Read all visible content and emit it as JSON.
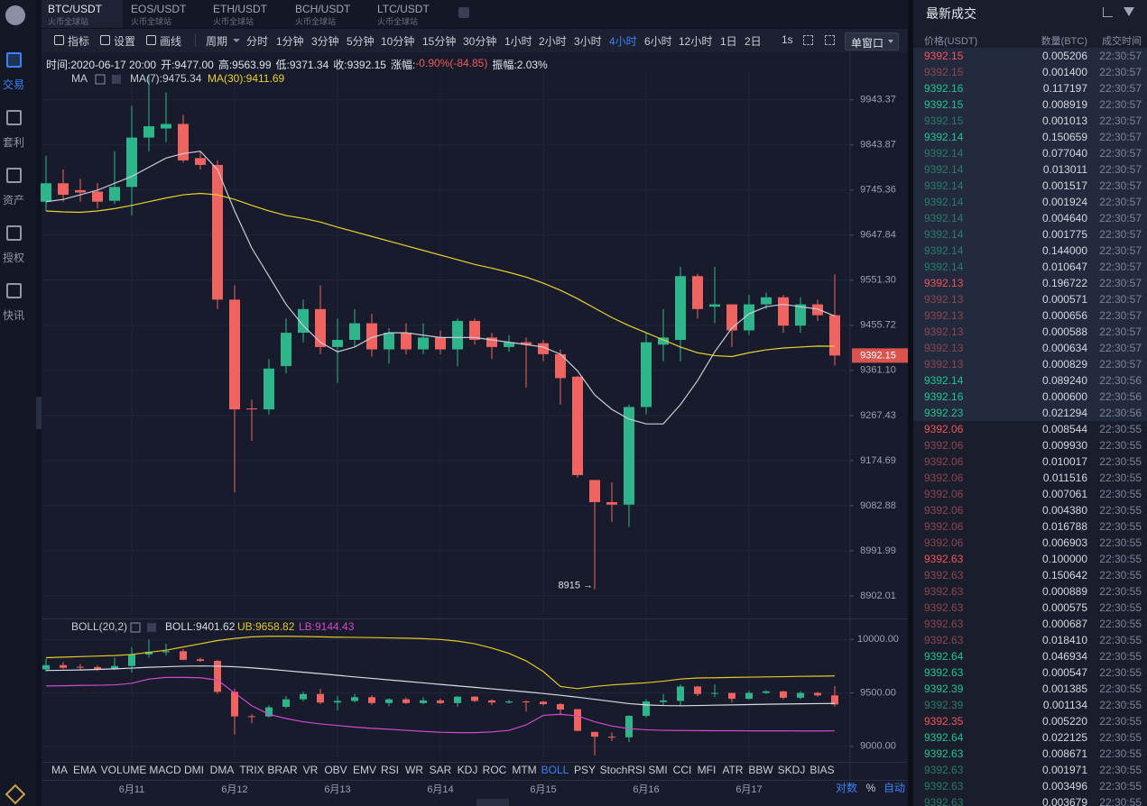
{
  "sidebar": {
    "nav": [
      {
        "label": "交易",
        "active": true
      },
      {
        "label": "套利"
      },
      {
        "label": "资产"
      },
      {
        "label": "授权"
      },
      {
        "label": "快讯"
      }
    ]
  },
  "tabs": [
    {
      "symbol": "BTC/USDT",
      "venue": "火币全球站",
      "active": true
    },
    {
      "symbol": "EOS/USDT",
      "venue": "火币全球站"
    },
    {
      "symbol": "ETH/USDT",
      "venue": "火币全球站"
    },
    {
      "symbol": "BCH/USDT",
      "venue": "火币全球站"
    },
    {
      "symbol": "LTC/USDT",
      "venue": "火币全球站"
    }
  ],
  "toolbar": {
    "tools": [
      "指标",
      "设置",
      "画线"
    ],
    "period_label": "周期",
    "periods": [
      {
        "label": "分时"
      },
      {
        "label": "1分钟"
      },
      {
        "label": "3分钟"
      },
      {
        "label": "5分钟"
      },
      {
        "label": "10分钟"
      },
      {
        "label": "15分钟"
      },
      {
        "label": "30分钟"
      },
      {
        "label": "1小时"
      },
      {
        "label": "2小时"
      },
      {
        "label": "3小时"
      },
      {
        "label": "4小时",
        "active": true
      },
      {
        "label": "6小时"
      },
      {
        "label": "12小时"
      },
      {
        "label": "1日"
      },
      {
        "label": "2日"
      }
    ],
    "interval": "1s",
    "window": "单窗口"
  },
  "info": {
    "items": [
      "时间:2020-06-17 20:00",
      "开:9477.00",
      "高:9563.99",
      "低:9371.34",
      "收:9392.15"
    ],
    "change_label": "涨幅:",
    "change": "-0.90%(-84.85)",
    "change_color": "#ef5b5b",
    "amplitude": "振幅:2.03%"
  },
  "chart_data": [
    {
      "type": "candlestick",
      "legend_title": "MA",
      "log": true,
      "grid": true,
      "up_color": "#2fb58c",
      "down_color": "#ef6461",
      "categories": [
        null,
        null,
        null,
        null,
        null,
        "6月11",
        null,
        null,
        null,
        null,
        null,
        "6月12",
        null,
        null,
        null,
        null,
        null,
        "6月13",
        null,
        null,
        null,
        null,
        null,
        "6月14",
        null,
        null,
        null,
        null,
        null,
        "6月15",
        null,
        null,
        null,
        null,
        null,
        "6月16",
        null,
        null,
        null,
        null,
        null,
        "6月17",
        null,
        null,
        null,
        null,
        null
      ],
      "open": [
        9720,
        9760,
        9745,
        9742,
        9722,
        9752,
        9860,
        9880,
        9890,
        9815,
        9800,
        9510,
        9282,
        9280,
        9370,
        9440,
        9490,
        9410,
        9425,
        9460,
        9405,
        9440,
        9405,
        9430,
        9405,
        9465,
        9430,
        9410,
        9420,
        9418,
        9395,
        9348,
        9135,
        9090,
        9085,
        9285,
        9415,
        9425,
        9560,
        9495,
        9500,
        9445,
        9500,
        9515,
        9455,
        9500,
        9477
      ],
      "high": [
        9820,
        9790,
        9770,
        9760,
        9830,
        9930,
        10000,
        9960,
        9910,
        9830,
        9810,
        9540,
        9300,
        9385,
        9470,
        9510,
        9540,
        9470,
        9490,
        9480,
        9450,
        9460,
        9460,
        9445,
        9470,
        9470,
        9440,
        9435,
        9430,
        9425,
        9405,
        9350,
        9135,
        9130,
        9290,
        9440,
        9490,
        9580,
        9565,
        9580,
        9500,
        9520,
        9525,
        9520,
        9515,
        9510,
        9563.99
      ],
      "low": [
        9700,
        9720,
        9720,
        9705,
        9715,
        9690,
        9830,
        9850,
        9805,
        9790,
        9490,
        9110,
        9215,
        9270,
        9355,
        9420,
        9395,
        9335,
        9410,
        9390,
        9375,
        9395,
        9395,
        9395,
        9370,
        9415,
        9385,
        9400,
        9325,
        9380,
        9290,
        9140,
        8915,
        9050,
        9040,
        9270,
        9380,
        9380,
        9470,
        9460,
        9410,
        9435,
        9490,
        9440,
        9440,
        9465,
        9371.34
      ],
      "close": [
        9760,
        9735,
        9740,
        9720,
        9752,
        9860,
        9885,
        9890,
        9810,
        9800,
        9510,
        9280,
        9280,
        9365,
        9440,
        9490,
        9410,
        9425,
        9460,
        9405,
        9440,
        9405,
        9430,
        9405,
        9465,
        9425,
        9410,
        9420,
        9415,
        9395,
        9345,
        9145,
        9090,
        9085,
        9285,
        9420,
        9430,
        9560,
        9490,
        9500,
        9445,
        9500,
        9515,
        9455,
        9500,
        9477,
        9392.15
      ],
      "series": [
        {
          "name": "MA(7):9475.34",
          "color": "#c9ccd6",
          "values": [
            9720,
            9725,
            9735,
            9745,
            9760,
            9775,
            9795,
            9815,
            9825,
            9830,
            9790,
            9700,
            9620,
            9560,
            9500,
            9455,
            9420,
            9400,
            9410,
            9430,
            9440,
            9440,
            9435,
            9430,
            9430,
            9430,
            9425,
            9420,
            9415,
            9410,
            9395,
            9360,
            9310,
            9280,
            9260,
            9250,
            9250,
            9290,
            9340,
            9400,
            9450,
            9480,
            9495,
            9500,
            9495,
            9490,
            9475.34
          ]
        },
        {
          "name": "MA(30):9411.69",
          "color": "#e8d330",
          "values": [
            9700,
            9698,
            9697,
            9700,
            9705,
            9712,
            9720,
            9728,
            9735,
            9738,
            9735,
            9725,
            9712,
            9700,
            9690,
            9684,
            9676,
            9665,
            9655,
            9645,
            9635,
            9625,
            9615,
            9605,
            9595,
            9585,
            9577,
            9568,
            9558,
            9545,
            9530,
            9512,
            9492,
            9472,
            9455,
            9440,
            9425,
            9410,
            9398,
            9392,
            9390,
            9398,
            9404,
            9408,
            9410,
            9412,
            9411.69
          ]
        }
      ],
      "ylim": [
        8859,
        10005
      ],
      "yticks": [
        9943.37,
        9843.87,
        9745.36,
        9647.84,
        {
          "value": 9551.3,
          "label": "9551.30"
        },
        9455.72,
        {
          "value": 9361.1,
          "label": "9361.10"
        },
        9267.43,
        9174.69,
        9082.88,
        8991.99,
        8902.01
      ],
      "annotation": "8915 →"
    },
    {
      "type": "boll",
      "title": "BOLL(20,2)",
      "grid": true,
      "series": [
        {
          "name": "BOLL:9401.62",
          "color": "#d8dbe6",
          "values": [
            9710,
            9712,
            9715,
            9720,
            9725,
            9732,
            9740,
            9745,
            9750,
            9752,
            9750,
            9745,
            9735,
            9722,
            9708,
            9694,
            9680,
            9665,
            9650,
            9636,
            9622,
            9608,
            9594,
            9580,
            9566,
            9552,
            9538,
            9524,
            9510,
            9495,
            9478,
            9460,
            9440,
            9420,
            9400,
            9388,
            9382,
            9380,
            9382,
            9385,
            9388,
            9391,
            9394,
            9396,
            9398,
            9400,
            9401.62
          ]
        },
        {
          "name": "UB:9658.82",
          "color": "#e6c829",
          "values": [
            9830,
            9835,
            9840,
            9845,
            9850,
            9860,
            9880,
            9900,
            9930,
            9960,
            9990,
            10010,
            10025,
            10030,
            10030,
            10028,
            10025,
            10022,
            10020,
            10018,
            10015,
            10012,
            10008,
            10000,
            9985,
            9960,
            9920,
            9870,
            9800,
            9700,
            9560,
            9540,
            9560,
            9575,
            9585,
            9595,
            9610,
            9630,
            9640,
            9642,
            9645,
            9648,
            9650,
            9652,
            9655,
            9657,
            9658.82
          ]
        },
        {
          "name": "LB:9144.43",
          "color": "#d14ad0",
          "values": [
            9565,
            9567,
            9570,
            9572,
            9575,
            9590,
            9630,
            9645,
            9645,
            9642,
            9620,
            9500,
            9380,
            9300,
            9260,
            9230,
            9210,
            9195,
            9180,
            9168,
            9160,
            9150,
            9140,
            9132,
            9128,
            9128,
            9135,
            9150,
            9200,
            9290,
            9300,
            9285,
            9230,
            9190,
            9165,
            9155,
            9150,
            9148,
            9147,
            9146,
            9146,
            9145,
            9145,
            9145,
            9144,
            9144,
            9144.43
          ]
        }
      ],
      "ylim": [
        8855,
        10180
      ],
      "yticks": [
        {
          "value": 10000,
          "label": "10000.00"
        },
        {
          "value": 9500,
          "label": "9500.00"
        },
        {
          "value": 9000,
          "label": "9000.00"
        }
      ]
    }
  ],
  "indicators": [
    {
      "label": "MA"
    },
    {
      "label": "EMA"
    },
    {
      "label": "VOLUME"
    },
    {
      "label": "MACD"
    },
    {
      "label": "DMI"
    },
    {
      "label": "DMA"
    },
    {
      "label": "TRIX"
    },
    {
      "label": "BRAR"
    },
    {
      "label": "VR"
    },
    {
      "label": "OBV"
    },
    {
      "label": "EMV"
    },
    {
      "label": "RSI"
    },
    {
      "label": "WR"
    },
    {
      "label": "SAR"
    },
    {
      "label": "KDJ"
    },
    {
      "label": "ROC"
    },
    {
      "label": "MTM"
    },
    {
      "label": "BOLL",
      "active": true
    },
    {
      "label": "PSY"
    },
    {
      "label": "StochRSI"
    },
    {
      "label": "SMI"
    },
    {
      "label": "CCI"
    },
    {
      "label": "MFI"
    },
    {
      "label": "ATR"
    },
    {
      "label": "BBW"
    },
    {
      "label": "SKDJ"
    },
    {
      "label": "BIAS"
    }
  ],
  "axis_options": [
    {
      "label": "对数",
      "active": true
    },
    {
      "label": "%"
    },
    {
      "label": "自动",
      "active": true
    }
  ],
  "trades": {
    "title": "最新成交",
    "columns": [
      "价格(USDT)",
      "数量(BTC)",
      "成交时间"
    ],
    "rows": [
      {
        "price": "9392.15",
        "amount": "0.005206",
        "time": "22:30:57",
        "color": "#f0535b",
        "highlight": true
      },
      {
        "price": "9392.15",
        "amount": "0.001400",
        "time": "22:30:57",
        "color": "#8c4650",
        "highlight": true
      },
      {
        "price": "9392.16",
        "amount": "0.117197",
        "time": "22:30:57",
        "color": "#1fc390",
        "highlight": true
      },
      {
        "price": "9392.15",
        "amount": "0.008919",
        "time": "22:30:57",
        "color": "#1fc390",
        "highlight": true
      },
      {
        "price": "9392.15",
        "amount": "0.001013",
        "time": "22:30:57",
        "color": "#2a7c68",
        "highlight": true
      },
      {
        "price": "9392.14",
        "amount": "0.150659",
        "time": "22:30:57",
        "color": "#1fc390",
        "highlight": true
      },
      {
        "price": "9392.14",
        "amount": "0.077040",
        "time": "22:30:57",
        "color": "#2a7c68",
        "highlight": true
      },
      {
        "price": "9392.14",
        "amount": "0.013011",
        "time": "22:30:57",
        "color": "#2a7c68",
        "highlight": true
      },
      {
        "price": "9392.14",
        "amount": "0.001517",
        "time": "22:30:57",
        "color": "#2a7c68",
        "highlight": true
      },
      {
        "price": "9392.14",
        "amount": "0.001924",
        "time": "22:30:57",
        "color": "#2a7c68",
        "highlight": true
      },
      {
        "price": "9392.14",
        "amount": "0.004640",
        "time": "22:30:57",
        "color": "#2a7c68",
        "highlight": true
      },
      {
        "price": "9392.14",
        "amount": "0.001775",
        "time": "22:30:57",
        "color": "#2a7c68",
        "highlight": true
      },
      {
        "price": "9392.14",
        "amount": "0.144000",
        "time": "22:30:57",
        "color": "#2a7c68",
        "highlight": true
      },
      {
        "price": "9392.14",
        "amount": "0.010647",
        "time": "22:30:57",
        "color": "#2a7c68",
        "highlight": true
      },
      {
        "price": "9392.13",
        "amount": "0.196722",
        "time": "22:30:57",
        "color": "#f0535b",
        "highlight": true
      },
      {
        "price": "9392.13",
        "amount": "0.000571",
        "time": "22:30:57",
        "color": "#8c4650",
        "highlight": true
      },
      {
        "price": "9392.13",
        "amount": "0.000656",
        "time": "22:30:57",
        "color": "#8c4650",
        "highlight": true
      },
      {
        "price": "9392.13",
        "amount": "0.000588",
        "time": "22:30:57",
        "color": "#8c4650",
        "highlight": true
      },
      {
        "price": "9392.13",
        "amount": "0.000634",
        "time": "22:30:57",
        "color": "#8c4650",
        "highlight": true
      },
      {
        "price": "9392.13",
        "amount": "0.000829",
        "time": "22:30:57",
        "color": "#8c4650",
        "highlight": true
      },
      {
        "price": "9392.14",
        "amount": "0.089240",
        "time": "22:30:56",
        "color": "#1fc390",
        "highlight": true
      },
      {
        "price": "9392.16",
        "amount": "0.000600",
        "time": "22:30:56",
        "color": "#1fc390",
        "highlight": true
      },
      {
        "price": "9392.23",
        "amount": "0.021294",
        "time": "22:30:56",
        "color": "#1fc390",
        "highlight": true
      },
      {
        "price": "9392.06",
        "amount": "0.008544",
        "time": "22:30:55",
        "color": "#f0535b"
      },
      {
        "price": "9392.06",
        "amount": "0.009930",
        "time": "22:30:55",
        "color": "#8c4650"
      },
      {
        "price": "9392.06",
        "amount": "0.010017",
        "time": "22:30:55",
        "color": "#8c4650"
      },
      {
        "price": "9392.06",
        "amount": "0.011516",
        "time": "22:30:55",
        "color": "#8c4650"
      },
      {
        "price": "9392.06",
        "amount": "0.007061",
        "time": "22:30:55",
        "color": "#8c4650"
      },
      {
        "price": "9392.06",
        "amount": "0.004380",
        "time": "22:30:55",
        "color": "#8c4650"
      },
      {
        "price": "9392.06",
        "amount": "0.016788",
        "time": "22:30:55",
        "color": "#8c4650"
      },
      {
        "price": "9392.06",
        "amount": "0.006903",
        "time": "22:30:55",
        "color": "#8c4650"
      },
      {
        "price": "9392.63",
        "amount": "0.100000",
        "time": "22:30:55",
        "color": "#f0535b"
      },
      {
        "price": "9392.63",
        "amount": "0.150642",
        "time": "22:30:55",
        "color": "#8c4650"
      },
      {
        "price": "9392.63",
        "amount": "0.000889",
        "time": "22:30:55",
        "color": "#8c4650"
      },
      {
        "price": "9392.63",
        "amount": "0.000575",
        "time": "22:30:55",
        "color": "#8c4650"
      },
      {
        "price": "9392.63",
        "amount": "0.000687",
        "time": "22:30:55",
        "color": "#8c4650"
      },
      {
        "price": "9392.63",
        "amount": "0.018410",
        "time": "22:30:55",
        "color": "#8c4650"
      },
      {
        "price": "9392.64",
        "amount": "0.046934",
        "time": "22:30:55",
        "color": "#1fc390"
      },
      {
        "price": "9392.63",
        "amount": "0.000547",
        "time": "22:30:55",
        "color": "#1fc390"
      },
      {
        "price": "9392.39",
        "amount": "0.001385",
        "time": "22:30:55",
        "color": "#1fc390"
      },
      {
        "price": "9392.39",
        "amount": "0.001134",
        "time": "22:30:55",
        "color": "#2a7c68"
      },
      {
        "price": "9392.35",
        "amount": "0.005220",
        "time": "22:30:55",
        "color": "#f0535b"
      },
      {
        "price": "9392.64",
        "amount": "0.022125",
        "time": "22:30:55",
        "color": "#1fc390"
      },
      {
        "price": "9392.63",
        "amount": "0.008671",
        "time": "22:30:55",
        "color": "#1fc390"
      },
      {
        "price": "9392.63",
        "amount": "0.001971",
        "time": "22:30:55",
        "color": "#2a7c68"
      },
      {
        "price": "9392.63",
        "amount": "0.003496",
        "time": "22:30:55",
        "color": "#2a7c68"
      },
      {
        "price": "9392.63",
        "amount": "0.003679",
        "time": "22:30:55",
        "color": "#2a7c68"
      }
    ]
  }
}
